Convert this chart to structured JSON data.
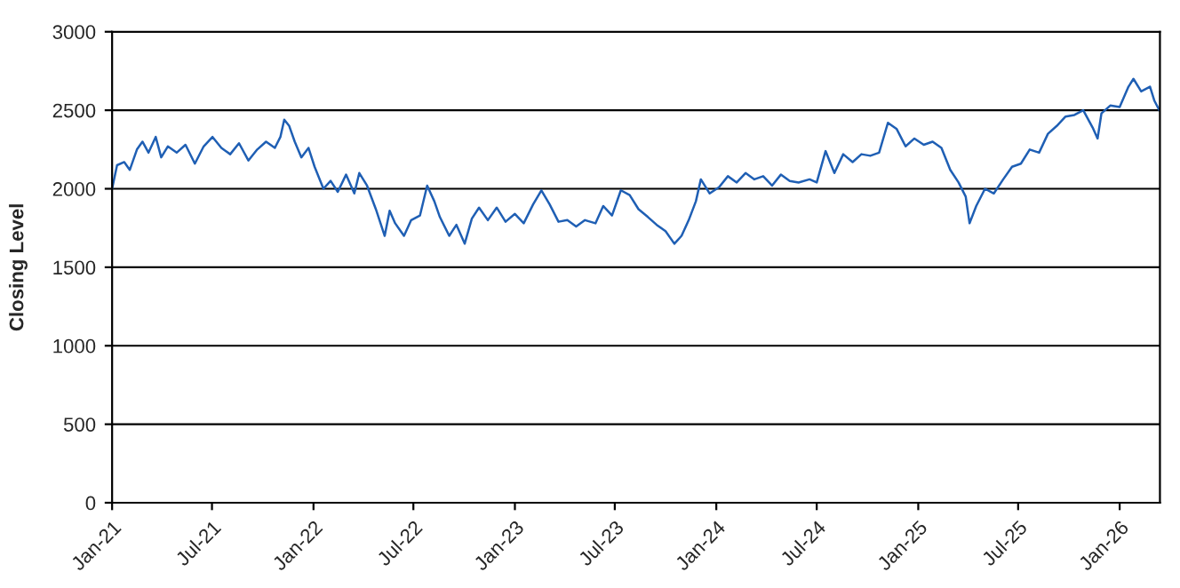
{
  "chart_data": {
    "type": "line",
    "ylabel": "Closing Level",
    "x": [
      "2021-01-01",
      "2021-01-10",
      "2021-01-23",
      "2021-02-02",
      "2021-02-15",
      "2021-02-25",
      "2021-03-08",
      "2021-03-21",
      "2021-03-31",
      "2021-04-12",
      "2021-04-28",
      "2021-05-14",
      "2021-05-31",
      "2021-06-16",
      "2021-07-02",
      "2021-07-18",
      "2021-08-03",
      "2021-08-19",
      "2021-09-05",
      "2021-09-21",
      "2021-10-07",
      "2021-10-23",
      "2021-11-02",
      "2021-11-09",
      "2021-11-18",
      "2021-11-28",
      "2021-12-10",
      "2021-12-23",
      "2022-01-03",
      "2022-01-19",
      "2022-02-01",
      "2022-02-14",
      "2022-03-01",
      "2022-03-16",
      "2022-03-25",
      "2022-04-08",
      "2022-04-24",
      "2022-05-10",
      "2022-05-19",
      "2022-05-29",
      "2022-06-14",
      "2022-06-27",
      "2022-07-13",
      "2022-07-26",
      "2022-08-08",
      "2022-08-18",
      "2022-09-04",
      "2022-09-17",
      "2022-10-02",
      "2022-10-15",
      "2022-10-28",
      "2022-11-13",
      "2022-11-29",
      "2022-12-15",
      "2023-01-01",
      "2023-01-17",
      "2023-02-03",
      "2023-02-18",
      "2023-03-05",
      "2023-03-21",
      "2023-04-06",
      "2023-04-22",
      "2023-05-08",
      "2023-05-27",
      "2023-06-10",
      "2023-06-26",
      "2023-07-12",
      "2023-07-28",
      "2023-08-13",
      "2023-08-30",
      "2023-09-15",
      "2023-10-01",
      "2023-10-17",
      "2023-10-30",
      "2023-11-12",
      "2023-11-25",
      "2023-12-04",
      "2023-12-20",
      "2024-01-06",
      "2024-01-22",
      "2024-02-07",
      "2024-02-23",
      "2024-03-10",
      "2024-03-26",
      "2024-04-11",
      "2024-04-27",
      "2024-05-13",
      "2024-05-29",
      "2024-06-18",
      "2024-07-01",
      "2024-07-17",
      "2024-08-02",
      "2024-08-18",
      "2024-09-04",
      "2024-09-20",
      "2024-10-06",
      "2024-10-22",
      "2024-11-07",
      "2024-11-23",
      "2024-12-09",
      "2024-12-25",
      "2025-01-11",
      "2025-01-27",
      "2025-02-12",
      "2025-02-28",
      "2025-03-15",
      "2025-03-28",
      "2025-04-04",
      "2025-04-16",
      "2025-05-02",
      "2025-05-18",
      "2025-06-04",
      "2025-06-20",
      "2025-07-06",
      "2025-07-22",
      "2025-08-08",
      "2025-08-24",
      "2025-09-09",
      "2025-09-25",
      "2025-10-11",
      "2025-10-27",
      "2025-11-13",
      "2025-11-22",
      "2025-11-29",
      "2025-12-15",
      "2026-01-01",
      "2026-01-17",
      "2026-01-26",
      "2026-02-09",
      "2026-02-25",
      "2026-03-05",
      "2026-03-14"
    ],
    "series": [
      {
        "color": "#1f5fb4",
        "values": [
          2000,
          2150,
          2170,
          2120,
          2250,
          2300,
          2230,
          2330,
          2200,
          2270,
          2230,
          2280,
          2160,
          2270,
          2330,
          2260,
          2220,
          2290,
          2180,
          2250,
          2300,
          2260,
          2330,
          2440,
          2400,
          2300,
          2200,
          2260,
          2140,
          2000,
          2050,
          1980,
          2090,
          1970,
          2100,
          2020,
          1870,
          1700,
          1860,
          1780,
          1700,
          1800,
          1830,
          2020,
          1920,
          1820,
          1700,
          1770,
          1650,
          1810,
          1880,
          1800,
          1880,
          1790,
          1840,
          1780,
          1900,
          1990,
          1900,
          1790,
          1800,
          1760,
          1800,
          1780,
          1890,
          1830,
          1990,
          1960,
          1870,
          1820,
          1770,
          1730,
          1650,
          1700,
          1800,
          1920,
          2060,
          1970,
          2010,
          2080,
          2040,
          2100,
          2060,
          2080,
          2020,
          2090,
          2050,
          2040,
          2060,
          2040,
          2240,
          2100,
          2220,
          2170,
          2220,
          2210,
          2230,
          2420,
          2380,
          2270,
          2320,
          2280,
          2300,
          2260,
          2120,
          2040,
          1950,
          1780,
          1890,
          2000,
          1970,
          2060,
          2140,
          2160,
          2250,
          2230,
          2350,
          2400,
          2460,
          2470,
          2500,
          2390,
          2320,
          2480,
          2530,
          2520,
          2650,
          2700,
          2620,
          2650,
          2560,
          2500
        ]
      }
    ],
    "xlim": [
      "2021-01-01",
      "2026-03-15"
    ],
    "xticks": [
      {
        "value": "2021-01-01",
        "label": "Jan-21"
      },
      {
        "value": "2021-07-01",
        "label": "Jul-21"
      },
      {
        "value": "2022-01-01",
        "label": "Jan-22"
      },
      {
        "value": "2022-07-01",
        "label": "Jul-22"
      },
      {
        "value": "2023-01-01",
        "label": "Jan-23"
      },
      {
        "value": "2023-07-01",
        "label": "Jul-23"
      },
      {
        "value": "2024-01-01",
        "label": "Jan-24"
      },
      {
        "value": "2024-07-01",
        "label": "Jul-24"
      },
      {
        "value": "2025-01-01",
        "label": "Jan-25"
      },
      {
        "value": "2025-07-01",
        "label": "Jul-25"
      },
      {
        "value": "2026-01-01",
        "label": "Jan-26"
      }
    ],
    "ylim": [
      0,
      3000
    ],
    "yticks": [
      0,
      500,
      1000,
      1500,
      2000,
      2500,
      3000
    ],
    "grid": "y",
    "marker": "none",
    "line_style": "solid"
  }
}
